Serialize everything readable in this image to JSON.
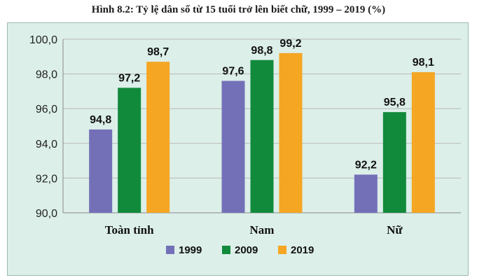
{
  "chart_data": {
    "type": "bar",
    "title": "Hình 8.2: Tỷ lệ dân số từ 15 tuổi trở lên biết chữ, 1999 – 2019 (%)",
    "categories": [
      "Toàn tỉnh",
      "Nam",
      "Nữ"
    ],
    "series": [
      {
        "name": "1999",
        "color": "#7470b8",
        "values": [
          94.8,
          97.6,
          92.2
        ],
        "labels": [
          "94,8",
          "97,6",
          "92,2"
        ]
      },
      {
        "name": "2009",
        "color": "#128a3c",
        "values": [
          97.2,
          98.8,
          95.8
        ],
        "labels": [
          "97,2",
          "98,8",
          "95,8"
        ]
      },
      {
        "name": "2019",
        "color": "#f5a623",
        "values": [
          98.7,
          99.2,
          98.1
        ],
        "labels": [
          "98,7",
          "99,2",
          "98,1"
        ]
      }
    ],
    "ylim": [
      90,
      100
    ],
    "yticks": [
      90,
      92,
      94,
      96,
      98,
      100
    ],
    "ytick_labels": [
      "90,0",
      "92,0",
      "94,0",
      "96,0",
      "98,0",
      "100,0"
    ],
    "grid": true,
    "legend": "bottom-center"
  }
}
